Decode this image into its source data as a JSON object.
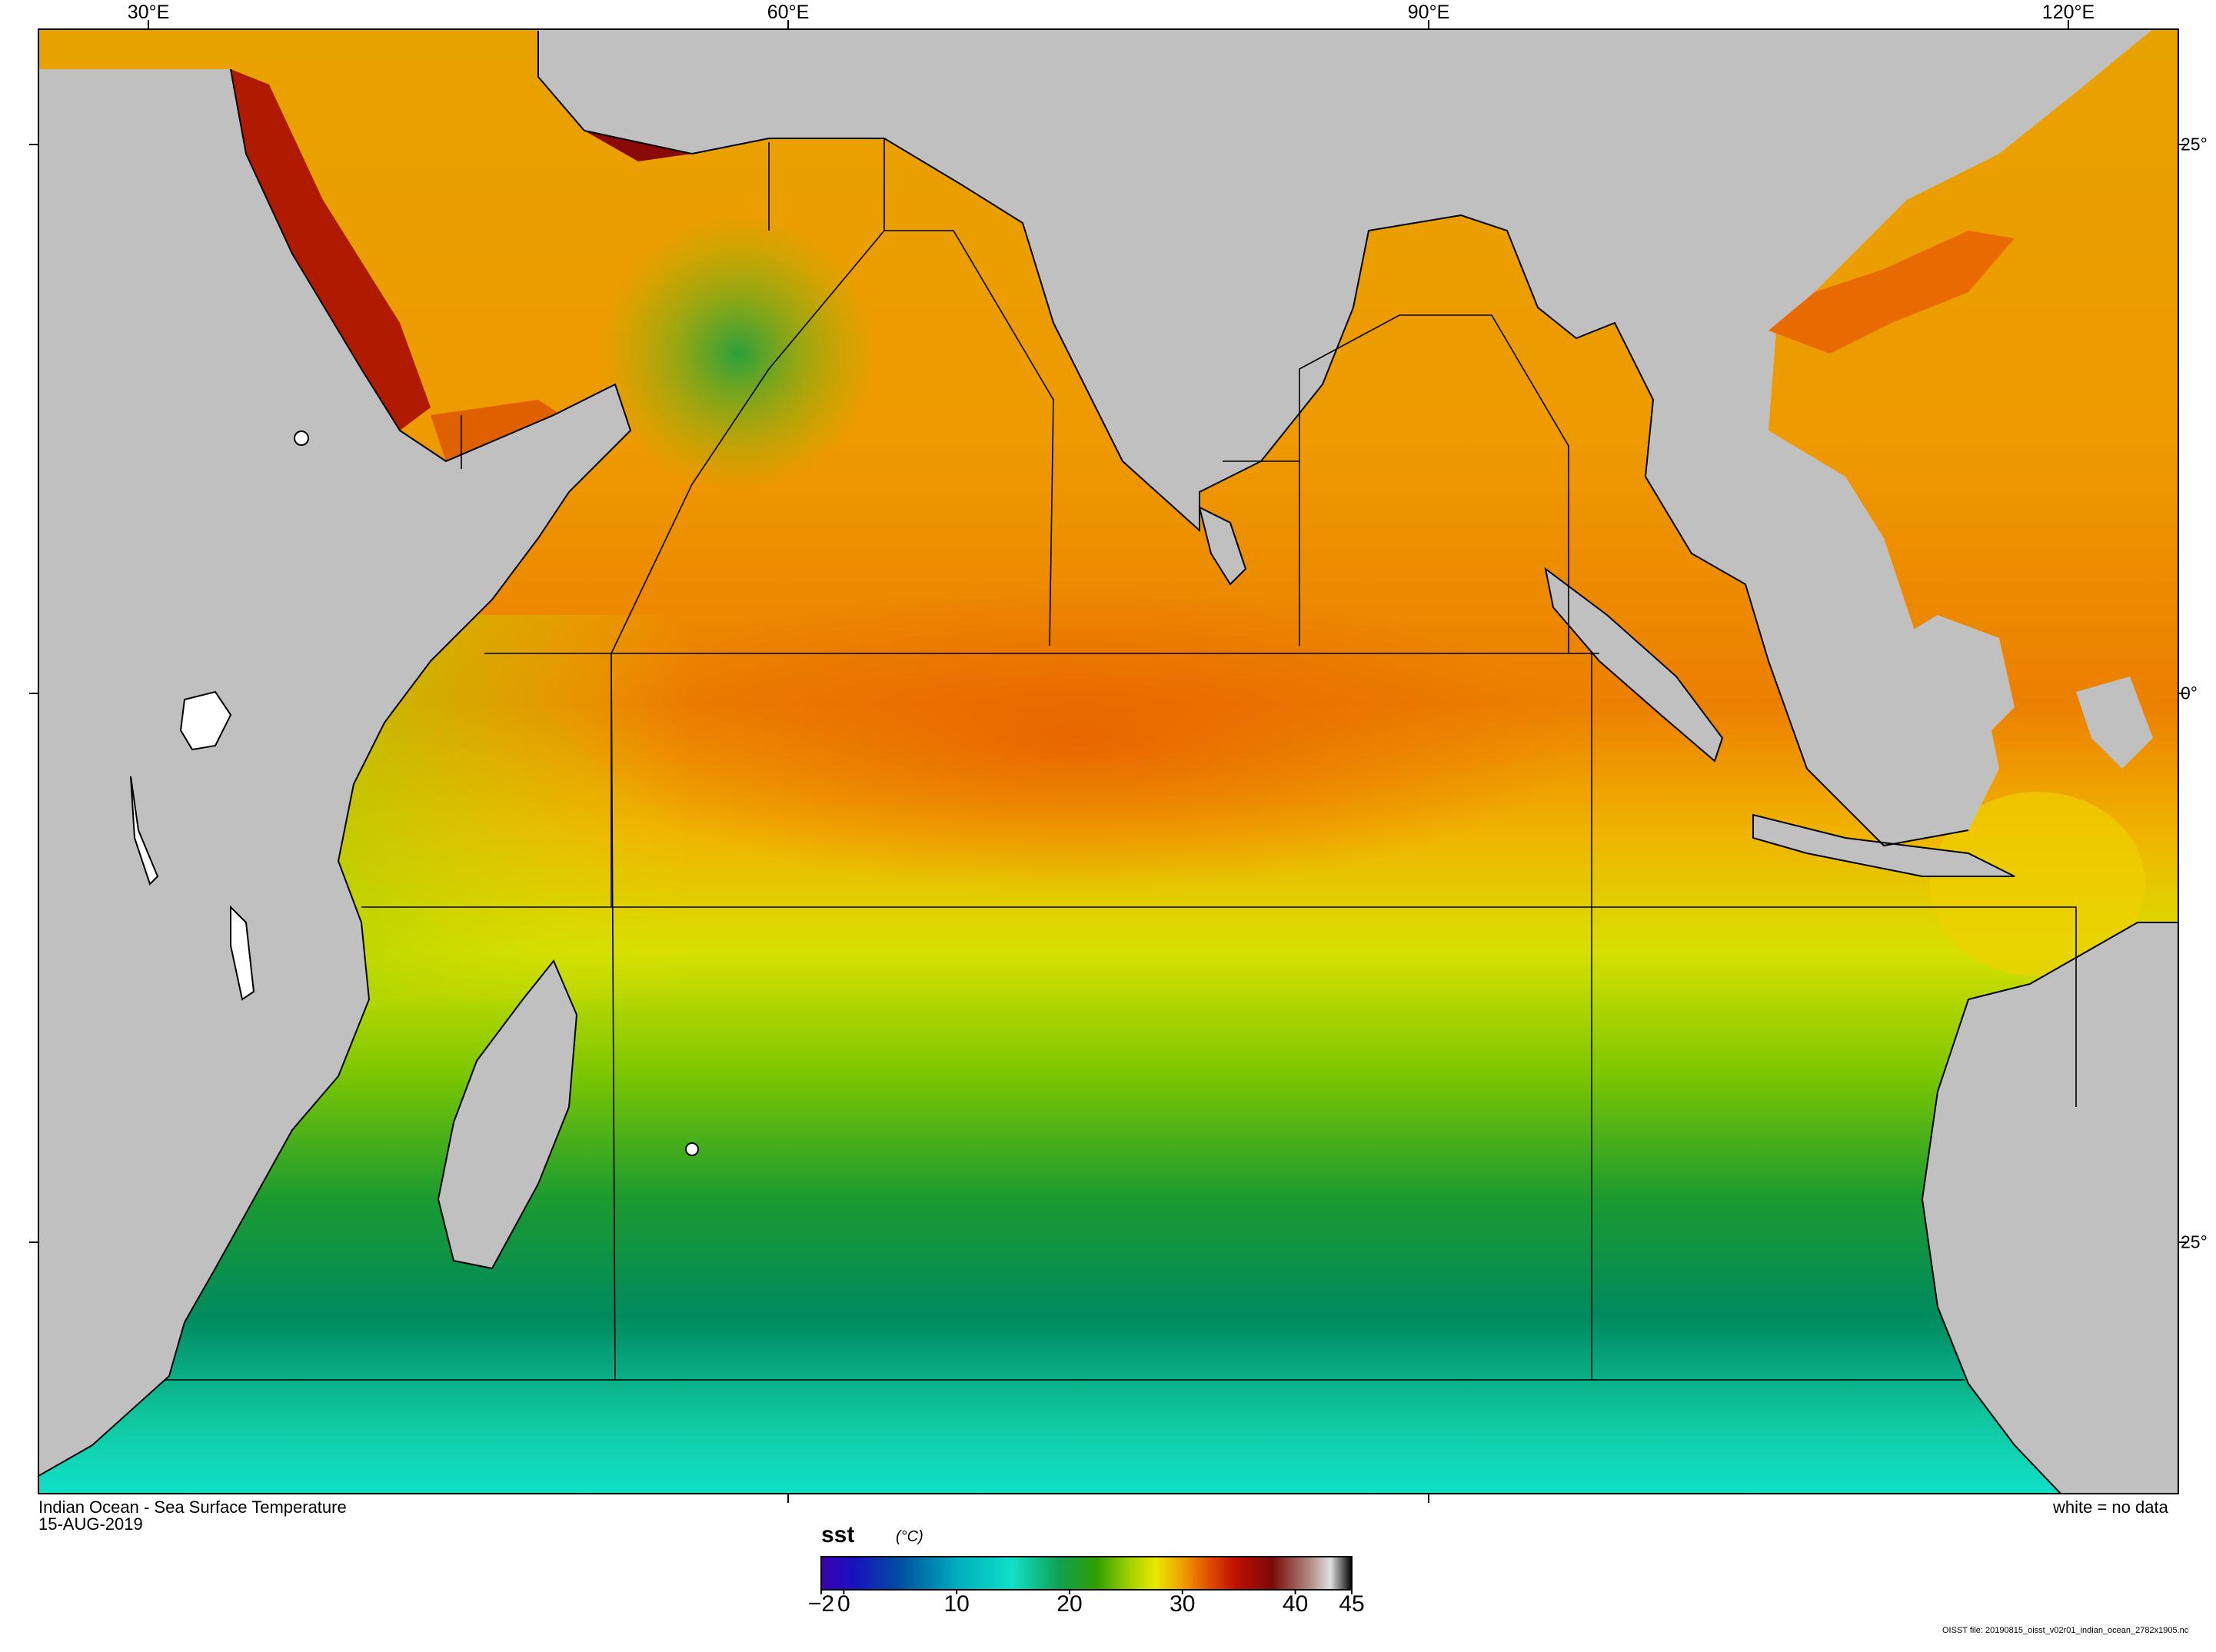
{
  "map": {
    "title": "Indian Ocean - Sea Surface Temperature",
    "date": "15-AUG-2019",
    "legend_note": "white = no data",
    "file_note": "OISST file: 20190815_oisst_v02r01_indian_ocean_2782x1905.nc",
    "longitude_labels": [
      "30°E",
      "60°E",
      "90°E",
      "120°E"
    ],
    "latitude_labels": [
      "25°",
      "0°",
      "25°"
    ]
  },
  "colorbar": {
    "variable": "sst",
    "units": "(°C)",
    "tick_labels": [
      "−2",
      "0",
      "10",
      "20",
      "30",
      "40",
      "45"
    ],
    "min": -2,
    "max": 45,
    "tick_values": [
      -2,
      0,
      10,
      20,
      30,
      40,
      45
    ]
  },
  "colors": {
    "land": "#c0c0c0",
    "no_data": "#ffffff",
    "cold": "#00e0c8",
    "cool": "#1aa04a",
    "mild": "#e6e600",
    "warm": "#f08c00",
    "hot": "#a00000"
  },
  "icons": {
    "map_canvas": "sst-map",
    "colorbar": "colorbar-gradient"
  }
}
